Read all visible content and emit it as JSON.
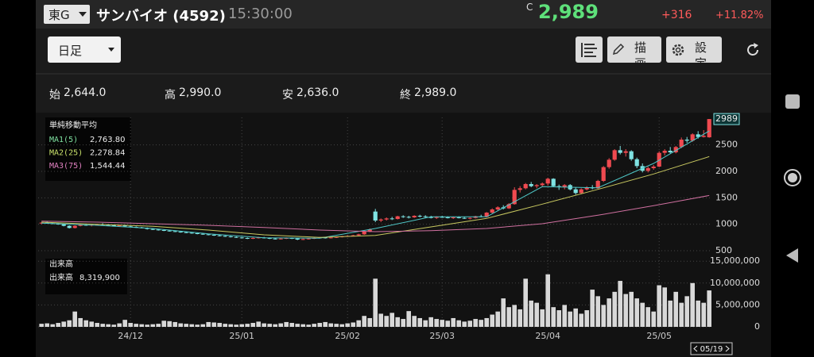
{
  "header": {
    "exchange": "東G",
    "name": "サンバイオ (4592)",
    "time": "15:30:00",
    "price_flag": "C",
    "price": "2,989",
    "change": "+316",
    "change_pct": "+11.82%"
  },
  "toolbar": {
    "period": "日足",
    "draw": "描画",
    "settings": "設定"
  },
  "ohlc": [
    {
      "label": "始",
      "value": "2,644.0"
    },
    {
      "label": "高",
      "value": "2,990.0"
    },
    {
      "label": "安",
      "value": "2,636.0"
    },
    {
      "label": "終",
      "value": "2,989.0"
    }
  ],
  "chart_data": [
    {
      "type": "candlestick",
      "legend_title": "単純移動平均",
      "up_color": "#ef4a50",
      "down_color": "#7fe3e3",
      "grid": true,
      "xlim": [
        -0.6,
        120.4
      ],
      "xticks": [
        {
          "value": 16,
          "label": "24/12"
        },
        {
          "value": 36,
          "label": "25/01"
        },
        {
          "value": 55,
          "label": "25/02"
        },
        {
          "value": 72,
          "label": "25/03"
        },
        {
          "value": 91,
          "label": "25/04"
        },
        {
          "value": 111,
          "label": "25/05"
        }
      ],
      "ylim": [
        440,
        3020
      ],
      "yticks": [
        500,
        1000,
        1500,
        2000,
        2500
      ],
      "current_marker": {
        "value": 2989,
        "label": "2989"
      },
      "cursor_date": "05/19",
      "candles": [
        [
          1020,
          1040,
          1000,
          1030
        ],
        [
          1030,
          1050,
          1010,
          1020
        ],
        [
          1020,
          1030,
          1000,
          1010
        ],
        [
          1010,
          1020,
          990,
          1000
        ],
        [
          1000,
          1010,
          960,
          970
        ],
        [
          970,
          980,
          920,
          930
        ],
        [
          930,
          980,
          920,
          970
        ],
        [
          970,
          1000,
          960,
          990
        ],
        [
          990,
          1010,
          970,
          980
        ],
        [
          980,
          1000,
          960,
          990
        ],
        [
          990,
          1010,
          980,
          1000
        ],
        [
          1000,
          1020,
          980,
          990
        ],
        [
          990,
          1000,
          970,
          980
        ],
        [
          980,
          990,
          960,
          970
        ],
        [
          970,
          990,
          960,
          980
        ],
        [
          980,
          990,
          950,
          960
        ],
        [
          960,
          970,
          940,
          950
        ],
        [
          950,
          960,
          930,
          940
        ],
        [
          940,
          950,
          920,
          930
        ],
        [
          930,
          940,
          900,
          910
        ],
        [
          910,
          920,
          890,
          900
        ],
        [
          900,
          910,
          880,
          890
        ],
        [
          890,
          900,
          870,
          880
        ],
        [
          880,
          890,
          860,
          870
        ],
        [
          870,
          880,
          850,
          860
        ],
        [
          860,
          870,
          840,
          850
        ],
        [
          850,
          860,
          830,
          840
        ],
        [
          840,
          850,
          820,
          830
        ],
        [
          830,
          840,
          810,
          820
        ],
        [
          820,
          830,
          800,
          810
        ],
        [
          810,
          820,
          790,
          800
        ],
        [
          800,
          810,
          780,
          790
        ],
        [
          790,
          800,
          770,
          780
        ],
        [
          780,
          790,
          760,
          770
        ],
        [
          770,
          780,
          750,
          760
        ],
        [
          760,
          770,
          740,
          750
        ],
        [
          750,
          760,
          730,
          740
        ],
        [
          740,
          750,
          720,
          730
        ],
        [
          730,
          750,
          720,
          740
        ],
        [
          740,
          760,
          730,
          750
        ],
        [
          750,
          760,
          730,
          740
        ],
        [
          740,
          750,
          720,
          730
        ],
        [
          730,
          740,
          710,
          720
        ],
        [
          720,
          740,
          710,
          730
        ],
        [
          730,
          750,
          720,
          740
        ],
        [
          740,
          750,
          720,
          730
        ],
        [
          730,
          740,
          700,
          710
        ],
        [
          710,
          730,
          700,
          720
        ],
        [
          720,
          740,
          710,
          730
        ],
        [
          730,
          750,
          720,
          740
        ],
        [
          740,
          760,
          730,
          750
        ],
        [
          750,
          760,
          730,
          740
        ],
        [
          740,
          760,
          730,
          750
        ],
        [
          750,
          770,
          740,
          760
        ],
        [
          760,
          780,
          750,
          770
        ],
        [
          770,
          790,
          760,
          780
        ],
        [
          780,
          800,
          770,
          790
        ],
        [
          790,
          820,
          780,
          810
        ],
        [
          810,
          870,
          800,
          860
        ],
        [
          860,
          920,
          850,
          900
        ],
        [
          1240,
          1290,
          1040,
          1070
        ],
        [
          1070,
          1110,
          1040,
          1090
        ],
        [
          1090,
          1130,
          1070,
          1110
        ],
        [
          1110,
          1140,
          1080,
          1100
        ],
        [
          1100,
          1160,
          1090,
          1150
        ],
        [
          1150,
          1170,
          1120,
          1140
        ],
        [
          1140,
          1160,
          1110,
          1130
        ],
        [
          1130,
          1170,
          1120,
          1160
        ],
        [
          1160,
          1180,
          1130,
          1150
        ],
        [
          1150,
          1170,
          1120,
          1140
        ],
        [
          1140,
          1160,
          1110,
          1120
        ],
        [
          1120,
          1150,
          1100,
          1140
        ],
        [
          1140,
          1160,
          1120,
          1130
        ],
        [
          1130,
          1150,
          1110,
          1120
        ],
        [
          1120,
          1140,
          1100,
          1130
        ],
        [
          1130,
          1150,
          1110,
          1120
        ],
        [
          1120,
          1140,
          1100,
          1110
        ],
        [
          1110,
          1130,
          1090,
          1120
        ],
        [
          1120,
          1160,
          1110,
          1150
        ],
        [
          1150,
          1180,
          1130,
          1140
        ],
        [
          1140,
          1230,
          1130,
          1220
        ],
        [
          1220,
          1300,
          1200,
          1280
        ],
        [
          1280,
          1340,
          1250,
          1320
        ],
        [
          1320,
          1360,
          1280,
          1300
        ],
        [
          1300,
          1400,
          1290,
          1380
        ],
        [
          1380,
          1700,
          1370,
          1650
        ],
        [
          1650,
          1720,
          1600,
          1680
        ],
        [
          1680,
          1780,
          1660,
          1760
        ],
        [
          1760,
          1800,
          1700,
          1720
        ],
        [
          1720,
          1760,
          1680,
          1740
        ],
        [
          1740,
          1790,
          1710,
          1770
        ],
        [
          1770,
          1880,
          1730,
          1860
        ],
        [
          1860,
          1870,
          1700,
          1720
        ],
        [
          1720,
          1750,
          1650,
          1700
        ],
        [
          1700,
          1760,
          1660,
          1740
        ],
        [
          1740,
          1760,
          1640,
          1660
        ],
        [
          1660,
          1700,
          1560,
          1590
        ],
        [
          1590,
          1680,
          1570,
          1660
        ],
        [
          1660,
          1720,
          1640,
          1700
        ],
        [
          1700,
          1740,
          1660,
          1680
        ],
        [
          1680,
          1840,
          1670,
          1820
        ],
        [
          1820,
          2100,
          1800,
          2080
        ],
        [
          2080,
          2250,
          2050,
          2220
        ],
        [
          2220,
          2420,
          2200,
          2400
        ],
        [
          2400,
          2480,
          2320,
          2350
        ],
        [
          2350,
          2420,
          2280,
          2380
        ],
        [
          2380,
          2400,
          2200,
          2230
        ],
        [
          2230,
          2260,
          2060,
          2100
        ],
        [
          2100,
          2150,
          1980,
          2010
        ],
        [
          2010,
          2090,
          1980,
          2060
        ],
        [
          2060,
          2120,
          2030,
          2090
        ],
        [
          2090,
          2380,
          2080,
          2350
        ],
        [
          2350,
          2420,
          2300,
          2390
        ],
        [
          2390,
          2460,
          2340,
          2360
        ],
        [
          2360,
          2480,
          2340,
          2460
        ],
        [
          2460,
          2640,
          2440,
          2600
        ],
        [
          2600,
          2650,
          2540,
          2580
        ],
        [
          2580,
          2720,
          2560,
          2700
        ],
        [
          2700,
          2760,
          2620,
          2650
        ],
        [
          2650,
          2780,
          2640,
          2673
        ],
        [
          2644,
          2990,
          2636,
          2989
        ]
      ],
      "series": [
        {
          "name": "MA1(5)",
          "color": "#4fc8c8",
          "legend_color": "#7ee0a0",
          "x": [
            0,
            10,
            20,
            30,
            40,
            50,
            60,
            70,
            80,
            90,
            100,
            110,
            120
          ],
          "values": [
            1020,
            980,
            920,
            820,
            745,
            735,
            920,
            1140,
            1140,
            1710,
            1690,
            2150,
            2763.8
          ],
          "value_labels": [
            null,
            null,
            null,
            null,
            null,
            null,
            null,
            null,
            null,
            null,
            null,
            null,
            "2,763.80"
          ]
        },
        {
          "name": "MA2(25)",
          "color": "#c8c860",
          "legend_color": "#c8e06a",
          "x": [
            0,
            10,
            20,
            30,
            40,
            50,
            60,
            70,
            80,
            90,
            100,
            110,
            120
          ],
          "values": [
            1040,
            1000,
            960,
            890,
            800,
            750,
            790,
            950,
            1110,
            1380,
            1660,
            1950,
            2278.84
          ],
          "value_labels": [
            null,
            null,
            null,
            null,
            null,
            null,
            null,
            null,
            null,
            null,
            null,
            null,
            "2,278.84"
          ]
        },
        {
          "name": "MA3(75)",
          "color": "#d070a0",
          "legend_color": "#e080c0",
          "x": [
            0,
            10,
            20,
            30,
            40,
            50,
            60,
            70,
            80,
            90,
            100,
            110,
            120
          ],
          "values": [
            1060,
            1040,
            1010,
            980,
            940,
            890,
            860,
            880,
            920,
            1010,
            1170,
            1350,
            1544.44
          ],
          "value_labels": [
            null,
            null,
            null,
            null,
            null,
            null,
            null,
            null,
            null,
            null,
            null,
            null,
            "1,544.44"
          ]
        }
      ]
    },
    {
      "type": "bar",
      "legend_title": "出来高",
      "grid": true,
      "xlim": [
        -0.6,
        120.4
      ],
      "ylim": [
        0,
        15400000
      ],
      "yticks": [
        0,
        {
          "value": 5000000,
          "label": "5,000,000"
        },
        {
          "value": 10000000,
          "label": "10,000,000"
        },
        {
          "value": 15000000,
          "label": "15,000,000"
        }
      ],
      "series": [
        {
          "name": "出来高",
          "color": "#d8d8d8",
          "values": [
            700000,
            800000,
            600000,
            900000,
            1200000,
            1500000,
            3500000,
            2000000,
            1500000,
            1200000,
            900000,
            700000,
            600000,
            500000,
            800000,
            1600000,
            900000,
            700000,
            600000,
            500000,
            600000,
            700000,
            1400000,
            1300000,
            1100000,
            800000,
            700000,
            600000,
            500000,
            600000,
            1100000,
            1000000,
            900000,
            700000,
            600000,
            500000,
            600000,
            700000,
            900000,
            1200000,
            800000,
            700000,
            600000,
            800000,
            1100000,
            900000,
            700000,
            600000,
            500000,
            700000,
            900000,
            1100000,
            800000,
            700000,
            600000,
            800000,
            1000000,
            1500000,
            2500000,
            2000000,
            11000000,
            3000000,
            2500000,
            3200000,
            2200000,
            1800000,
            3600000,
            2500000,
            2000000,
            1500000,
            2200000,
            1800000,
            1600000,
            1400000,
            2000000,
            1500000,
            1200000,
            1400000,
            1800000,
            1600000,
            2000000,
            2800000,
            3500000,
            6500000,
            4500000,
            5000000,
            4000000,
            11000000,
            6000000,
            5500000,
            4000000,
            12000000,
            4500000,
            3800000,
            5000000,
            3500000,
            4200000,
            3000000,
            3800000,
            8500000,
            7000000,
            5000000,
            6500000,
            8000000,
            10500000,
            7500000,
            8000000,
            6500000,
            5500000,
            4500000,
            3500000,
            9500000,
            9000000,
            6000000,
            8000000,
            5500000,
            7000000,
            10000000,
            6000000,
            5500000,
            8319900
          ],
          "value_labels": [
            null,
            null,
            null,
            null,
            null,
            null,
            null,
            null,
            null,
            null,
            null,
            null,
            null,
            null,
            null,
            null,
            null,
            null,
            null,
            null,
            null,
            null,
            null,
            null,
            null,
            null,
            null,
            null,
            null,
            null,
            null,
            null,
            null,
            null,
            null,
            null,
            null,
            null,
            null,
            null,
            null,
            null,
            null,
            null,
            null,
            null,
            null,
            null,
            null,
            null,
            null,
            null,
            null,
            null,
            null,
            null,
            null,
            null,
            null,
            null,
            null,
            null,
            null,
            null,
            null,
            null,
            null,
            null,
            null,
            null,
            null,
            null,
            null,
            null,
            null,
            null,
            null,
            null,
            null,
            null,
            null,
            null,
            null,
            null,
            null,
            null,
            null,
            null,
            null,
            null,
            null,
            null,
            null,
            null,
            null,
            null,
            null,
            null,
            null,
            null,
            null,
            null,
            null,
            null,
            null,
            null,
            null,
            null,
            null,
            null,
            null,
            null,
            null,
            null,
            null,
            null,
            null,
            null,
            null,
            null,
            "8,319,900"
          ]
        }
      ]
    }
  ]
}
